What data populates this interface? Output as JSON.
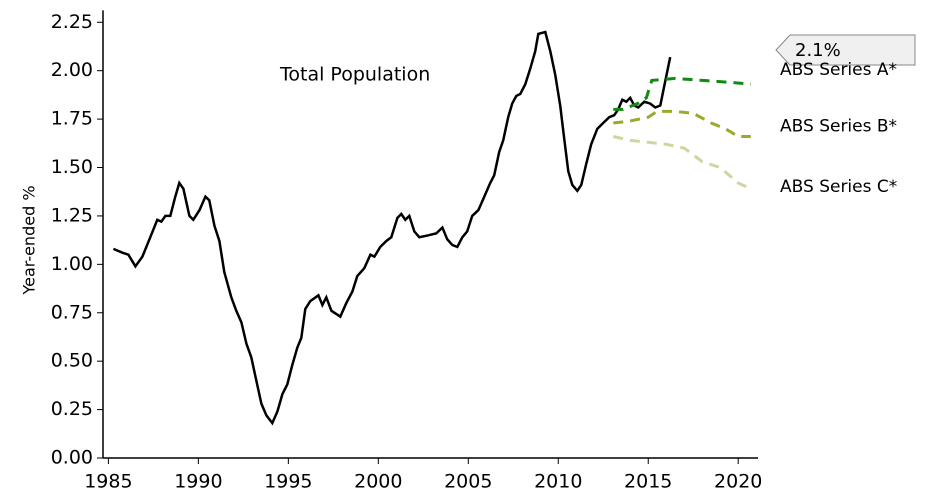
{
  "chart_data": {
    "type": "line",
    "y_label": "Year-ended %",
    "annotation": "2.1%",
    "xlim": [
      1984.7,
      2021.1
    ],
    "ylim": [
      0,
      2.27
    ],
    "xticks": [
      1985,
      1990,
      1995,
      2000,
      2005,
      2010,
      2015,
      2020
    ],
    "yticks": [
      {
        "value": 0,
        "label": "0.00"
      },
      0.25,
      {
        "value": 0.5,
        "label": "0.50"
      },
      0.75,
      {
        "value": 1,
        "label": "1.00"
      },
      1.25,
      {
        "value": 1.5,
        "label": "1.50"
      },
      1.75,
      {
        "value": 2,
        "label": "2.00"
      },
      2.25
    ],
    "grid": false,
    "series": [
      {
        "name": "Total Population",
        "color": "#000000",
        "dashed": false,
        "x": [
          1985.28,
          1985.78,
          1986.11,
          1986.5,
          1986.89,
          1987.33,
          1987.72,
          1987.94,
          1988.17,
          1988.44,
          1988.72,
          1988.94,
          1989.17,
          1989.5,
          1989.72,
          1990.06,
          1990.39,
          1990.61,
          1990.89,
          1991.17,
          1991.44,
          1991.83,
          1992.11,
          1992.39,
          1992.67,
          1992.94,
          1993.22,
          1993.5,
          1993.78,
          1994.11,
          1994.39,
          1994.67,
          1994.94,
          1995.22,
          1995.5,
          1995.72,
          1995.94,
          1996.22,
          1996.67,
          1996.89,
          1997.11,
          1997.39,
          1997.89,
          1998.22,
          1998.56,
          1998.83,
          1999.22,
          1999.56,
          1999.78,
          2000.11,
          2000.44,
          2000.72,
          2001.06,
          2001.28,
          2001.5,
          2001.72,
          2002.0,
          2002.28,
          2002.78,
          2003.22,
          2003.56,
          2003.83,
          2004.11,
          2004.39,
          2004.67,
          2004.94,
          2005.22,
          2005.56,
          2005.89,
          2006.22,
          2006.44,
          2006.72,
          2006.94,
          2007.22,
          2007.44,
          2007.67,
          2007.89,
          2008.17,
          2008.44,
          2008.72,
          2008.89,
          2009.28,
          2009.56,
          2009.83,
          2010.11,
          2010.33,
          2010.56,
          2010.78,
          2011.06,
          2011.28,
          2011.56,
          2011.83,
          2012.17,
          2012.5,
          2012.83,
          2013.11,
          2013.33,
          2013.56,
          2013.78,
          2014.0,
          2014.22,
          2014.44,
          2014.78,
          2015.11,
          2015.39,
          2015.67,
          2015.89,
          2016.22
        ],
        "values": [
          1.08,
          1.06,
          1.05,
          0.99,
          1.04,
          1.14,
          1.23,
          1.22,
          1.25,
          1.25,
          1.35,
          1.42,
          1.39,
          1.25,
          1.23,
          1.28,
          1.35,
          1.33,
          1.2,
          1.12,
          0.96,
          0.83,
          0.76,
          0.7,
          0.59,
          0.52,
          0.4,
          0.28,
          0.22,
          0.18,
          0.24,
          0.33,
          0.38,
          0.48,
          0.57,
          0.62,
          0.77,
          0.81,
          0.84,
          0.79,
          0.83,
          0.76,
          0.73,
          0.8,
          0.86,
          0.94,
          0.98,
          1.05,
          1.04,
          1.09,
          1.12,
          1.14,
          1.24,
          1.26,
          1.23,
          1.25,
          1.17,
          1.14,
          1.15,
          1.16,
          1.19,
          1.13,
          1.1,
          1.09,
          1.14,
          1.17,
          1.25,
          1.28,
          1.35,
          1.42,
          1.46,
          1.58,
          1.64,
          1.76,
          1.83,
          1.87,
          1.88,
          1.93,
          2.01,
          2.1,
          2.19,
          2.2,
          2.1,
          1.98,
          1.82,
          1.65,
          1.48,
          1.41,
          1.38,
          1.41,
          1.52,
          1.62,
          1.7,
          1.73,
          1.76,
          1.77,
          1.8,
          1.85,
          1.84,
          1.86,
          1.82,
          1.81,
          1.84,
          1.83,
          1.81,
          1.82,
          1.92,
          2.07
        ]
      },
      {
        "name": "ABS Series A*",
        "color": "#128a12",
        "dashed": true,
        "x": [
          2013.06,
          2013.6,
          2014.4,
          2014.9,
          2015.2,
          2016.5,
          2018,
          2019.5,
          2020.7
        ],
        "values": [
          1.8,
          1.8,
          1.83,
          1.86,
          1.95,
          1.96,
          1.95,
          1.94,
          1.93
        ]
      },
      {
        "name": "ABS Series B*",
        "color": "#9aaa2a",
        "dashed": true,
        "x": [
          2013.06,
          2014,
          2015,
          2015.5,
          2016.5,
          2017.5,
          2018.5,
          2019.3,
          2020,
          2020.7
        ],
        "values": [
          1.73,
          1.74,
          1.76,
          1.79,
          1.79,
          1.78,
          1.73,
          1.7,
          1.66,
          1.66
        ]
      },
      {
        "name": "ABS Series C*",
        "color": "#c8d8a0",
        "dashed": true,
        "x": [
          2013.06,
          2014,
          2015,
          2016,
          2017,
          2018,
          2019,
          2020,
          2020.7
        ],
        "values": [
          1.66,
          1.64,
          1.63,
          1.62,
          1.6,
          1.53,
          1.5,
          1.42,
          1.39
        ]
      }
    ]
  }
}
